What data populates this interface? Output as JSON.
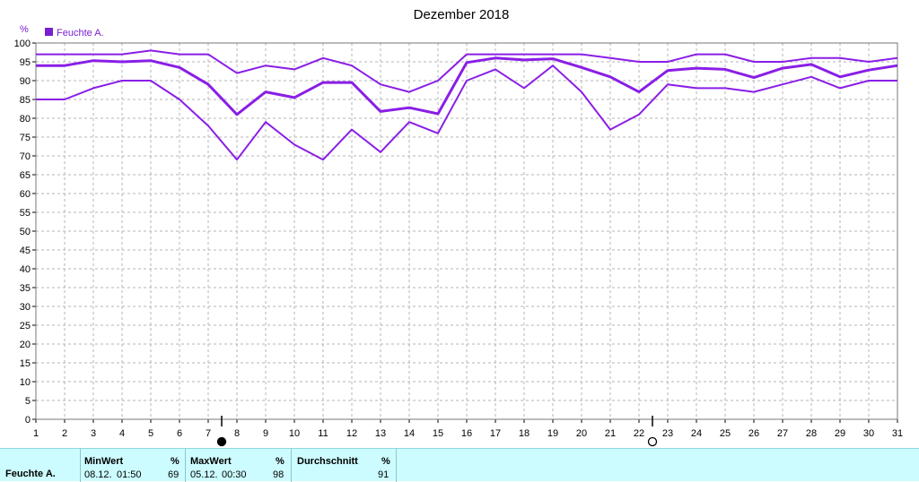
{
  "chart_data": {
    "type": "line",
    "title": "Dezember 2018",
    "ylabel": "%",
    "ylim": [
      0,
      100
    ],
    "yticks": [
      "0",
      "5",
      "10",
      "15",
      "20",
      "25",
      "30",
      "35",
      "40",
      "45",
      "50",
      "55",
      "60",
      "65",
      "70",
      "75",
      "80",
      "85",
      "90",
      "95",
      "100"
    ],
    "x": [
      "1",
      "2",
      "3",
      "4",
      "5",
      "6",
      "7",
      "8",
      "9",
      "10",
      "11",
      "12",
      "13",
      "14",
      "15",
      "16",
      "17",
      "18",
      "19",
      "20",
      "21",
      "22",
      "23",
      "24",
      "25",
      "26",
      "27",
      "28",
      "29",
      "30",
      "31"
    ],
    "legend": "Feuchte A.",
    "legend_position": "top-left",
    "grid": true,
    "series": [
      {
        "role": "max",
        "values": [
          97,
          97,
          97,
          97,
          98,
          97,
          97,
          92,
          94,
          93,
          96,
          94,
          89,
          87,
          90,
          97,
          97,
          97,
          97,
          97,
          96,
          95,
          95,
          97,
          97,
          95,
          95,
          96,
          96,
          95,
          96
        ]
      },
      {
        "role": "avg",
        "values": [
          94,
          94,
          95.3,
          95,
          95.3,
          93.5,
          89,
          81,
          87,
          85.5,
          89.5,
          89.5,
          81.8,
          82.8,
          81.2,
          94.8,
          96,
          95.5,
          95.8,
          93.5,
          91,
          87,
          92.7,
          93.3,
          93,
          90.8,
          93.3,
          94.3,
          91,
          92.8,
          94
        ]
      },
      {
        "role": "min",
        "values": [
          85,
          85,
          88,
          90,
          90,
          85,
          78,
          69,
          79,
          73,
          69,
          77,
          71,
          79,
          76,
          90,
          93,
          88,
          94,
          87,
          77,
          81,
          89,
          88,
          88,
          87,
          89,
          91,
          88,
          90,
          90
        ]
      }
    ],
    "markers": [
      {
        "x": "7",
        "symbol": "filled-moon"
      },
      {
        "x": "22",
        "symbol": "open-moon"
      }
    ],
    "series_color": "#8a1ee6"
  },
  "stats": {
    "row_label": "Feuchte A.",
    "min": {
      "label": "MinWert",
      "unit": "%",
      "date": "08.12.",
      "time": "01:50",
      "value": "69"
    },
    "max": {
      "label": "MaxWert",
      "unit": "%",
      "date": "05.12.",
      "time": "00:30",
      "value": "98"
    },
    "avg": {
      "label": "Durchschnitt",
      "unit": "%",
      "value": "91"
    }
  }
}
